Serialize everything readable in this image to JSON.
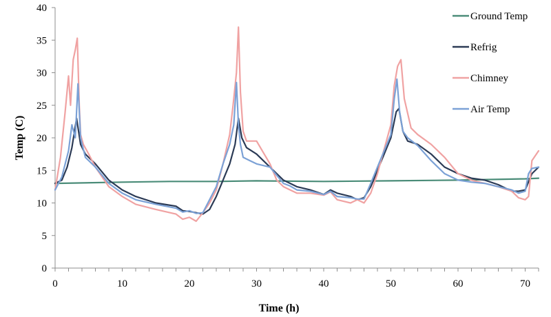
{
  "chart_data": {
    "type": "line",
    "xlabel": "Time (h)",
    "ylabel": "Temp (C)",
    "xlim": [
      0,
      72
    ],
    "ylim": [
      0,
      40
    ],
    "xticks": [
      0,
      10,
      20,
      30,
      40,
      50,
      60,
      70
    ],
    "yticks": [
      0,
      5,
      10,
      15,
      20,
      25,
      30,
      35,
      40
    ],
    "grid": false,
    "legend_position": "top-right",
    "series": [
      {
        "name": "Ground Temp",
        "color": "#4a8c78",
        "x": [
          0,
          10,
          17,
          24,
          30,
          40,
          50,
          60,
          70,
          72
        ],
        "y": [
          13.0,
          13.2,
          13.3,
          13.3,
          13.4,
          13.3,
          13.4,
          13.5,
          13.7,
          13.8
        ]
      },
      {
        "name": "Refrig",
        "color": "#2b3a55",
        "x": [
          0,
          1,
          1.8,
          2.5,
          3.2,
          3.8,
          4.5,
          6,
          8,
          10,
          12,
          15,
          18,
          19,
          20,
          21,
          22,
          23,
          24,
          25,
          26,
          26.8,
          27.3,
          27.8,
          28.5,
          30,
          32,
          34,
          35,
          36,
          38,
          40,
          41,
          42,
          44,
          45,
          46,
          47,
          48,
          50,
          50.8,
          51.2,
          51.8,
          52.5,
          54,
          56,
          58,
          60,
          62,
          64,
          66,
          68,
          69,
          70,
          71,
          72
        ],
        "y": [
          13.0,
          13.5,
          15.5,
          18.5,
          23.0,
          19.0,
          17.5,
          16.0,
          13.5,
          12.0,
          11.0,
          10.0,
          9.5,
          8.8,
          8.7,
          8.5,
          8.3,
          9.0,
          11.0,
          13.5,
          16.0,
          19.0,
          23.0,
          20.0,
          18.5,
          17.5,
          15.5,
          13.5,
          13.0,
          12.5,
          12.0,
          11.3,
          12.0,
          11.5,
          11.0,
          10.5,
          10.8,
          12.5,
          15.0,
          20.0,
          24.0,
          24.5,
          21.0,
          19.5,
          19.0,
          17.5,
          15.5,
          14.5,
          13.8,
          13.5,
          12.8,
          11.8,
          11.8,
          12.0,
          14.5,
          15.5
        ]
      },
      {
        "name": "Chimney",
        "color": "#f0a2a2",
        "x": [
          0,
          0.8,
          1.5,
          2.0,
          2.3,
          2.7,
          3.0,
          3.3,
          3.6,
          3.8,
          4.2,
          5,
          6,
          8,
          10,
          12,
          15,
          18,
          19,
          20,
          21,
          22,
          23,
          24,
          25,
          26,
          26.5,
          27,
          27.3,
          27.6,
          28,
          28.5,
          30,
          32,
          33,
          34,
          35,
          36,
          38,
          40,
          41,
          42,
          44,
          45,
          46,
          47,
          48,
          50,
          50.5,
          51,
          51.5,
          52,
          53,
          54,
          56,
          58,
          60,
          62,
          64,
          66,
          68,
          69,
          70,
          70.5,
          71,
          72
        ],
        "y": [
          12.0,
          17.0,
          24.0,
          29.5,
          25.0,
          32.0,
          33.5,
          35.3,
          25.0,
          20.5,
          19.0,
          17.5,
          15.5,
          12.5,
          11.0,
          9.8,
          9.0,
          8.3,
          7.5,
          7.8,
          7.2,
          8.5,
          10.0,
          12.0,
          16.0,
          20.5,
          25.0,
          30.0,
          37.0,
          27.0,
          21.0,
          19.5,
          19.5,
          16.0,
          13.5,
          12.5,
          12.0,
          11.5,
          11.5,
          11.2,
          11.7,
          10.5,
          10.0,
          10.5,
          10.0,
          11.5,
          14.5,
          22.0,
          28.0,
          31.0,
          32.0,
          26.0,
          21.5,
          20.5,
          19.0,
          17.0,
          14.5,
          13.5,
          13.0,
          12.5,
          11.8,
          10.8,
          10.5,
          11.0,
          16.5,
          18.0
        ]
      },
      {
        "name": "Air Temp",
        "color": "#7ba1d6",
        "x": [
          0,
          1,
          2.0,
          2.5,
          3.0,
          3.4,
          3.8,
          4.5,
          6,
          8,
          10,
          12,
          15,
          18,
          19,
          20,
          21,
          22,
          23,
          24,
          25,
          26,
          26.6,
          27.0,
          27.3,
          27.6,
          28,
          29,
          30,
          32,
          34,
          35,
          36,
          38,
          40,
          41,
          42,
          44,
          45,
          46,
          47,
          48,
          50,
          50.5,
          50.9,
          51.3,
          51.8,
          52.5,
          54,
          56,
          58,
          60,
          62,
          64,
          66,
          68,
          69,
          70,
          70.5,
          71,
          72
        ],
        "y": [
          12.0,
          14.0,
          18.0,
          22.0,
          20.0,
          28.3,
          20.0,
          17.0,
          15.5,
          13.0,
          11.5,
          10.5,
          9.8,
          9.2,
          8.6,
          8.8,
          8.4,
          8.5,
          10.5,
          12.5,
          16.0,
          19.0,
          22.0,
          28.5,
          22.0,
          19.0,
          17.0,
          16.5,
          16.0,
          15.5,
          13.0,
          12.6,
          12.0,
          11.8,
          11.3,
          11.8,
          11.0,
          10.8,
          10.6,
          10.6,
          13.0,
          15.5,
          20.5,
          26.0,
          29.0,
          24.0,
          21.0,
          20.0,
          18.8,
          16.5,
          14.5,
          13.5,
          13.2,
          13.0,
          12.5,
          12.0,
          11.5,
          11.8,
          14.5,
          15.3,
          15.5
        ]
      }
    ]
  }
}
